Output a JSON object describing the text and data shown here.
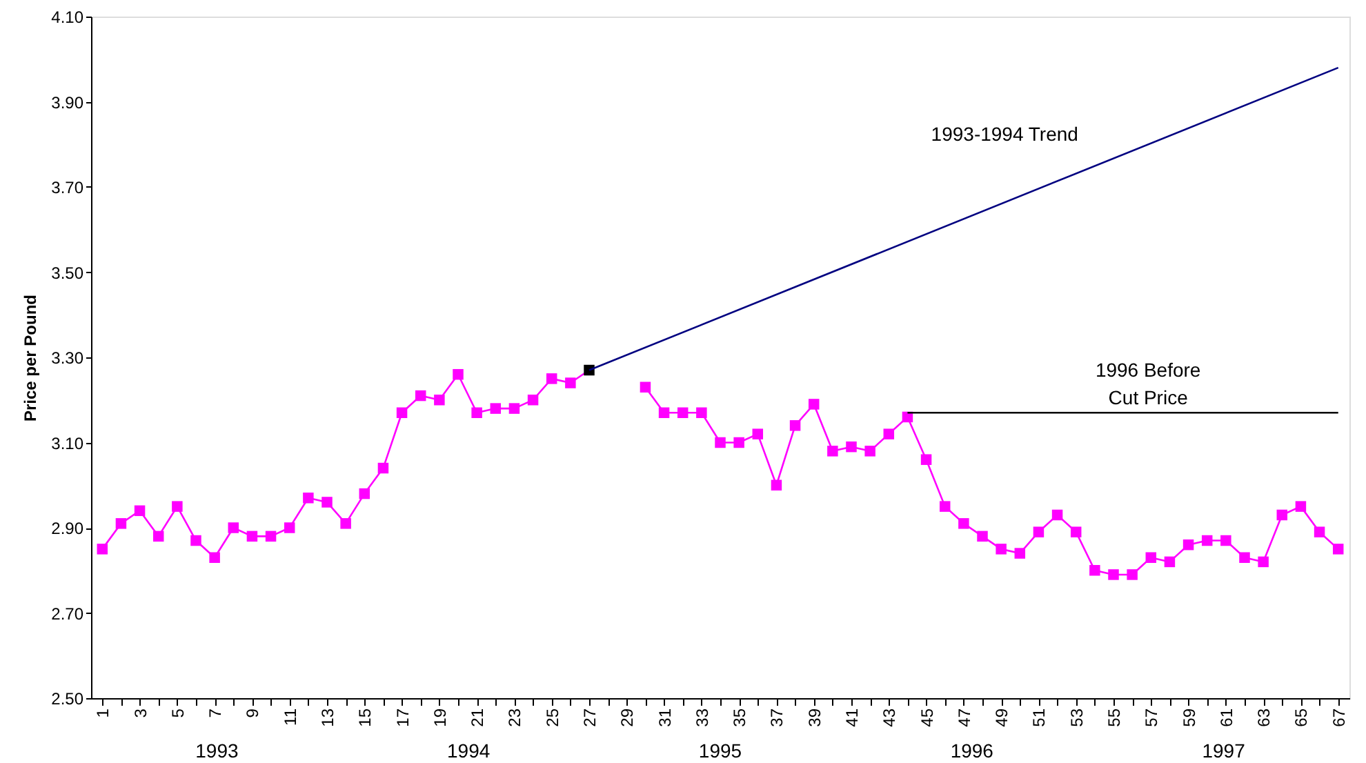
{
  "chart_data": {
    "type": "line",
    "ylabel": "Price per Pound",
    "xlim": [
      0.4,
      67.6
    ],
    "ylim": [
      2.5,
      4.1
    ],
    "yticks": [
      {
        "value": 2.5,
        "label": "2.50"
      },
      {
        "value": 2.7,
        "label": "2.70"
      },
      {
        "value": 2.9,
        "label": "2.90"
      },
      {
        "value": 3.1,
        "label": "3.10"
      },
      {
        "value": 3.3,
        "label": "3.30"
      },
      {
        "value": 3.5,
        "label": "3.50"
      },
      {
        "value": 3.7,
        "label": "3.70"
      },
      {
        "value": 3.9,
        "label": "3.90"
      },
      {
        "value": 4.1,
        "label": "4.10"
      }
    ],
    "xticks": [
      1,
      {
        "value": 2,
        "label": null
      },
      3,
      {
        "value": 4,
        "label": null
      },
      5,
      {
        "value": 6,
        "label": null
      },
      7,
      {
        "value": 8,
        "label": null
      },
      9,
      {
        "value": 10,
        "label": null
      },
      11,
      {
        "value": 12,
        "label": null
      },
      13,
      {
        "value": 14,
        "label": null
      },
      15,
      {
        "value": 16,
        "label": null
      },
      17,
      {
        "value": 18,
        "label": null
      },
      19,
      {
        "value": 20,
        "label": null
      },
      21,
      {
        "value": 22,
        "label": null
      },
      23,
      {
        "value": 24,
        "label": null
      },
      25,
      {
        "value": 26,
        "label": null
      },
      27,
      {
        "value": 28,
        "label": null
      },
      29,
      {
        "value": 30,
        "label": null
      },
      31,
      {
        "value": 32,
        "label": null
      },
      33,
      {
        "value": 34,
        "label": null
      },
      35,
      {
        "value": 36,
        "label": null
      },
      37,
      {
        "value": 38,
        "label": null
      },
      39,
      {
        "value": 40,
        "label": null
      },
      41,
      {
        "value": 42,
        "label": null
      },
      43,
      {
        "value": 44,
        "label": null
      },
      45,
      {
        "value": 46,
        "label": null
      },
      47,
      {
        "value": 48,
        "label": null
      },
      49,
      {
        "value": 50,
        "label": null
      },
      51,
      {
        "value": 52,
        "label": null
      },
      53,
      {
        "value": 54,
        "label": null
      },
      55,
      {
        "value": 56,
        "label": null
      },
      57,
      {
        "value": 58,
        "label": null
      },
      59,
      {
        "value": 60,
        "label": null
      },
      61,
      {
        "value": 62,
        "label": null
      },
      63,
      {
        "value": 64,
        "label": null
      },
      65,
      {
        "value": 66,
        "label": null
      },
      67
    ],
    "grid": false,
    "series": [
      {
        "marker": "square",
        "color": "#ff00ff",
        "x": [
          1,
          2,
          3,
          4,
          5,
          6,
          7,
          8,
          9,
          10,
          11,
          12,
          13,
          14,
          15,
          16,
          17,
          18,
          19,
          20,
          21,
          22,
          23,
          24,
          25,
          26,
          27,
          28,
          29,
          30,
          31,
          32,
          33,
          34,
          35,
          36,
          37,
          38,
          39,
          40,
          41,
          42,
          43,
          44,
          45,
          46,
          47,
          48,
          49,
          50,
          51,
          52,
          53,
          54,
          55,
          56,
          57,
          58,
          59,
          60,
          61,
          62,
          63,
          64,
          65,
          66,
          67
        ],
        "values": [
          2.85,
          2.91,
          2.94,
          2.88,
          2.95,
          2.87,
          2.83,
          2.9,
          2.88,
          2.88,
          2.9,
          2.97,
          2.96,
          2.91,
          2.98,
          3.04,
          3.17,
          3.21,
          3.2,
          3.26,
          3.17,
          3.18,
          3.18,
          3.2,
          3.25,
          3.24,
          3.27,
          null,
          null,
          3.23,
          3.17,
          3.17,
          3.17,
          3.1,
          3.1,
          3.12,
          3.0,
          3.14,
          3.19,
          3.08,
          3.09,
          3.08,
          3.12,
          3.16,
          3.06,
          2.95,
          2.91,
          2.88,
          2.85,
          2.84,
          2.89,
          2.93,
          2.89,
          2.8,
          2.79,
          2.79,
          2.83,
          2.82,
          2.86,
          2.87,
          2.87,
          2.83,
          2.82,
          2.93,
          2.95,
          2.89,
          2.85
        ],
        "colors": [
          "#ff00ff",
          "#ff00ff",
          "#ff00ff",
          "#ff00ff",
          "#ff00ff",
          "#ff00ff",
          "#ff00ff",
          "#ff00ff",
          "#ff00ff",
          "#ff00ff",
          "#ff00ff",
          "#ff00ff",
          "#ff00ff",
          "#ff00ff",
          "#ff00ff",
          "#ff00ff",
          "#ff00ff",
          "#ff00ff",
          "#ff00ff",
          "#ff00ff",
          "#ff00ff",
          "#ff00ff",
          "#ff00ff",
          "#ff00ff",
          "#ff00ff",
          "#ff00ff",
          "#000000",
          "#ff00ff",
          "#ff00ff",
          "#ff00ff",
          "#ff00ff",
          "#ff00ff",
          "#ff00ff",
          "#ff00ff",
          "#ff00ff",
          "#ff00ff",
          "#ff00ff",
          "#ff00ff",
          "#ff00ff",
          "#ff00ff",
          "#ff00ff",
          "#ff00ff",
          "#ff00ff",
          "#ff00ff",
          "#ff00ff",
          "#ff00ff",
          "#ff00ff",
          "#ff00ff",
          "#ff00ff",
          "#ff00ff",
          "#ff00ff",
          "#ff00ff",
          "#ff00ff",
          "#ff00ff",
          "#ff00ff",
          "#ff00ff",
          "#ff00ff",
          "#ff00ff",
          "#ff00ff",
          "#ff00ff",
          "#ff00ff",
          "#ff00ff",
          "#ff00ff",
          "#ff00ff",
          "#ff00ff",
          "#ff00ff",
          "#ff00ff"
        ]
      },
      {
        "marker": "none",
        "color": "#000080",
        "x": [
          27,
          67
        ],
        "values": [
          3.27,
          3.98
        ]
      },
      {
        "marker": "none",
        "color": "#000000",
        "x": [
          44,
          67
        ],
        "values": [
          3.17,
          3.17
        ]
      }
    ],
    "annotations": [
      "1993-1994 Trend",
      "1996 Before\nCut Price",
      "1993",
      "1994",
      "1995",
      "1996",
      "1997"
    ]
  }
}
